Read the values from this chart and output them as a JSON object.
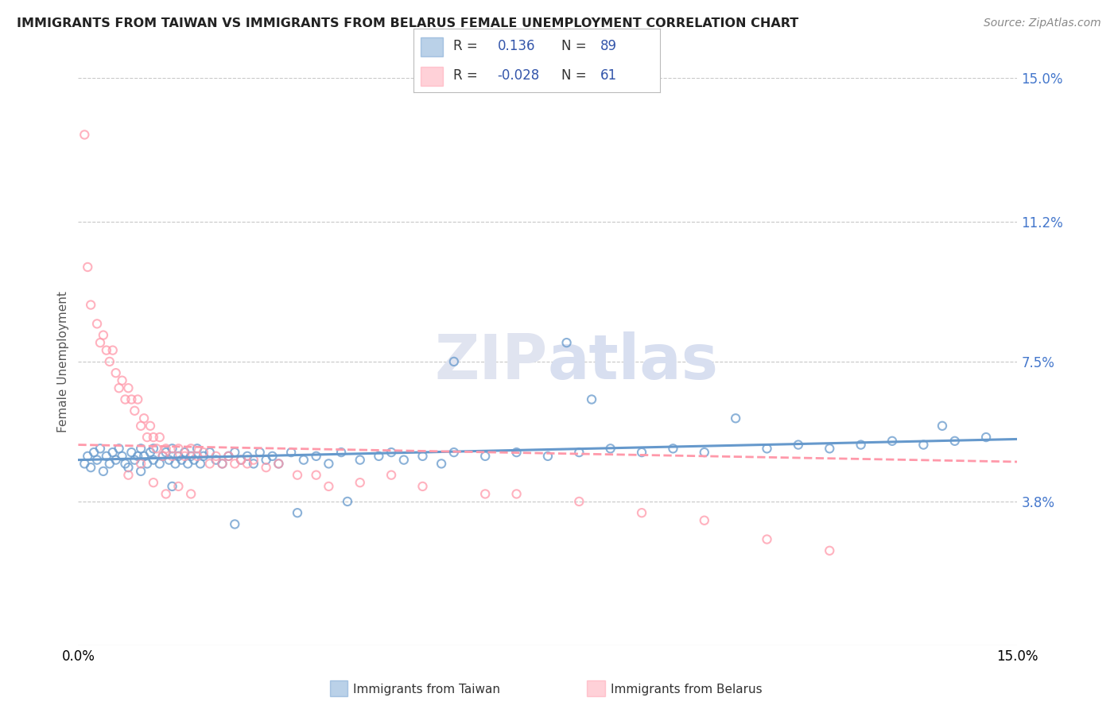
{
  "title": "IMMIGRANTS FROM TAIWAN VS IMMIGRANTS FROM BELARUS FEMALE UNEMPLOYMENT CORRELATION CHART",
  "source": "Source: ZipAtlas.com",
  "ylabel": "Female Unemployment",
  "xlim": [
    0.0,
    15.0
  ],
  "ylim": [
    0.0,
    15.0
  ],
  "x_tick_labels": [
    "0.0%",
    "15.0%"
  ],
  "y_tick_vals": [
    3.8,
    7.5,
    11.2,
    15.0
  ],
  "y_tick_labels": [
    "3.8%",
    "7.5%",
    "11.2%",
    "15.0%"
  ],
  "taiwan_color": "#6699CC",
  "belarus_color": "#FF99AA",
  "taiwan_R": 0.136,
  "taiwan_N": 89,
  "belarus_R": -0.028,
  "belarus_N": 61,
  "background_color": "#FFFFFF",
  "grid_color": "#C8C8C8",
  "watermark_text": "ZIPatlas",
  "watermark_color": "#E0E4F0",
  "legend_color": "#3355AA",
  "taiwan_scatter_x": [
    0.1,
    0.15,
    0.2,
    0.25,
    0.3,
    0.35,
    0.4,
    0.45,
    0.5,
    0.55,
    0.6,
    0.65,
    0.7,
    0.75,
    0.8,
    0.85,
    0.9,
    0.95,
    1.0,
    1.0,
    1.05,
    1.1,
    1.15,
    1.2,
    1.2,
    1.3,
    1.35,
    1.4,
    1.45,
    1.5,
    1.55,
    1.6,
    1.65,
    1.7,
    1.75,
    1.8,
    1.85,
    1.9,
    1.95,
    2.0,
    2.1,
    2.2,
    2.3,
    2.4,
    2.5,
    2.6,
    2.7,
    2.8,
    2.9,
    3.0,
    3.1,
    3.2,
    3.4,
    3.6,
    3.8,
    4.0,
    4.2,
    4.5,
    4.8,
    5.0,
    5.2,
    5.5,
    5.8,
    6.0,
    6.5,
    7.0,
    7.5,
    8.0,
    8.5,
    9.0,
    9.5,
    10.0,
    11.0,
    11.5,
    12.0,
    12.5,
    13.0,
    13.5,
    14.0,
    14.5,
    6.0,
    7.8,
    8.2,
    10.5,
    13.8,
    4.3,
    3.5,
    2.5,
    1.5
  ],
  "taiwan_scatter_y": [
    4.8,
    5.0,
    4.7,
    5.1,
    4.9,
    5.2,
    4.6,
    5.0,
    4.8,
    5.1,
    4.9,
    5.2,
    5.0,
    4.8,
    4.7,
    5.1,
    4.9,
    5.0,
    5.2,
    4.6,
    5.0,
    4.8,
    5.1,
    4.9,
    5.2,
    4.8,
    5.0,
    5.1,
    4.9,
    5.2,
    4.8,
    5.0,
    4.9,
    5.1,
    4.8,
    5.0,
    4.9,
    5.2,
    4.8,
    5.0,
    5.1,
    4.9,
    4.8,
    5.0,
    5.1,
    4.9,
    5.0,
    4.8,
    5.1,
    4.9,
    5.0,
    4.8,
    5.1,
    4.9,
    5.0,
    4.8,
    5.1,
    4.9,
    5.0,
    5.1,
    4.9,
    5.0,
    4.8,
    5.1,
    5.0,
    5.1,
    5.0,
    5.1,
    5.2,
    5.1,
    5.2,
    5.1,
    5.2,
    5.3,
    5.2,
    5.3,
    5.4,
    5.3,
    5.4,
    5.5,
    7.5,
    8.0,
    6.5,
    6.0,
    5.8,
    3.8,
    3.5,
    3.2,
    4.2
  ],
  "belarus_scatter_x": [
    0.1,
    0.15,
    0.2,
    0.3,
    0.35,
    0.4,
    0.45,
    0.5,
    0.55,
    0.6,
    0.65,
    0.7,
    0.75,
    0.8,
    0.85,
    0.9,
    0.95,
    1.0,
    1.05,
    1.1,
    1.15,
    1.2,
    1.25,
    1.3,
    1.35,
    1.4,
    1.5,
    1.6,
    1.7,
    1.8,
    1.9,
    2.0,
    2.1,
    2.2,
    2.3,
    2.4,
    2.5,
    2.6,
    2.7,
    2.8,
    3.0,
    3.2,
    3.5,
    3.8,
    4.0,
    4.5,
    5.0,
    5.5,
    6.5,
    7.0,
    8.0,
    9.0,
    10.0,
    11.0,
    12.0,
    0.8,
    1.0,
    1.2,
    1.4,
    1.6,
    1.8
  ],
  "belarus_scatter_y": [
    13.5,
    10.0,
    9.0,
    8.5,
    8.0,
    8.2,
    7.8,
    7.5,
    7.8,
    7.2,
    6.8,
    7.0,
    6.5,
    6.8,
    6.5,
    6.2,
    6.5,
    5.8,
    6.0,
    5.5,
    5.8,
    5.5,
    5.2,
    5.5,
    5.0,
    5.2,
    5.0,
    5.2,
    5.0,
    5.2,
    5.0,
    5.1,
    4.8,
    5.0,
    4.8,
    5.0,
    4.8,
    4.9,
    4.8,
    4.9,
    4.7,
    4.8,
    4.5,
    4.5,
    4.2,
    4.3,
    4.5,
    4.2,
    4.0,
    4.0,
    3.8,
    3.5,
    3.3,
    2.8,
    2.5,
    4.5,
    4.8,
    4.3,
    4.0,
    4.2,
    4.0
  ],
  "taiwan_trendline": [
    4.9,
    5.45
  ],
  "belarus_trendline": [
    5.3,
    4.85
  ]
}
